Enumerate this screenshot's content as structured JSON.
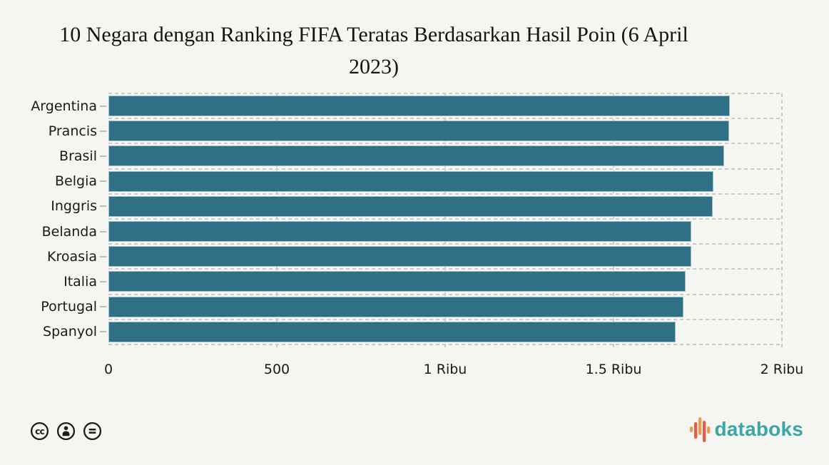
{
  "title": {
    "text": "10 Negara dengan Ranking FIFA Teratas Berdasarkan Hasil Poin (6 April 2023)",
    "line1": "10 Negara dengan Ranking FIFA Teratas Berdasarkan Hasil Poin (6 April",
    "line2": "2023)"
  },
  "chart_data": {
    "type": "bar",
    "orientation": "horizontal",
    "title": "10 Negara dengan Ranking FIFA Teratas Berdasarkan Hasil Poin (6 April 2023)",
    "categories": [
      "Argentina",
      "Prancis",
      "Brasil",
      "Belgia",
      "Inggris",
      "Belanda",
      "Kroasia",
      "Italia",
      "Portugal",
      "Spanyol"
    ],
    "values": [
      1846,
      1844,
      1828,
      1797,
      1794,
      1731,
      1730,
      1714,
      1707,
      1684
    ],
    "unit": "poin",
    "xlabel": "",
    "ylabel": "",
    "xlim": [
      0,
      2000
    ],
    "x_tick_values": [
      0,
      500,
      1000,
      1500,
      2000
    ],
    "x_tick_labels": [
      "0",
      "500",
      "1 Ribu",
      "1.5 Ribu",
      "2 Ribu"
    ],
    "grid": "dashed",
    "legend": "none",
    "bar_color": "#2e7187"
  },
  "colors": {
    "background": "#f5f5f2",
    "bar": "#2e7187",
    "gridline": "#cbcbcb",
    "text": "#1a1a1a",
    "brand_teal": "#3aa7a4",
    "logo_orange": "#f2994a",
    "logo_red": "#e8594a"
  },
  "footer": {
    "license_icons": [
      "cc-icon",
      "cc-by-icon",
      "cc-nd-icon"
    ],
    "brand": "databoks"
  }
}
